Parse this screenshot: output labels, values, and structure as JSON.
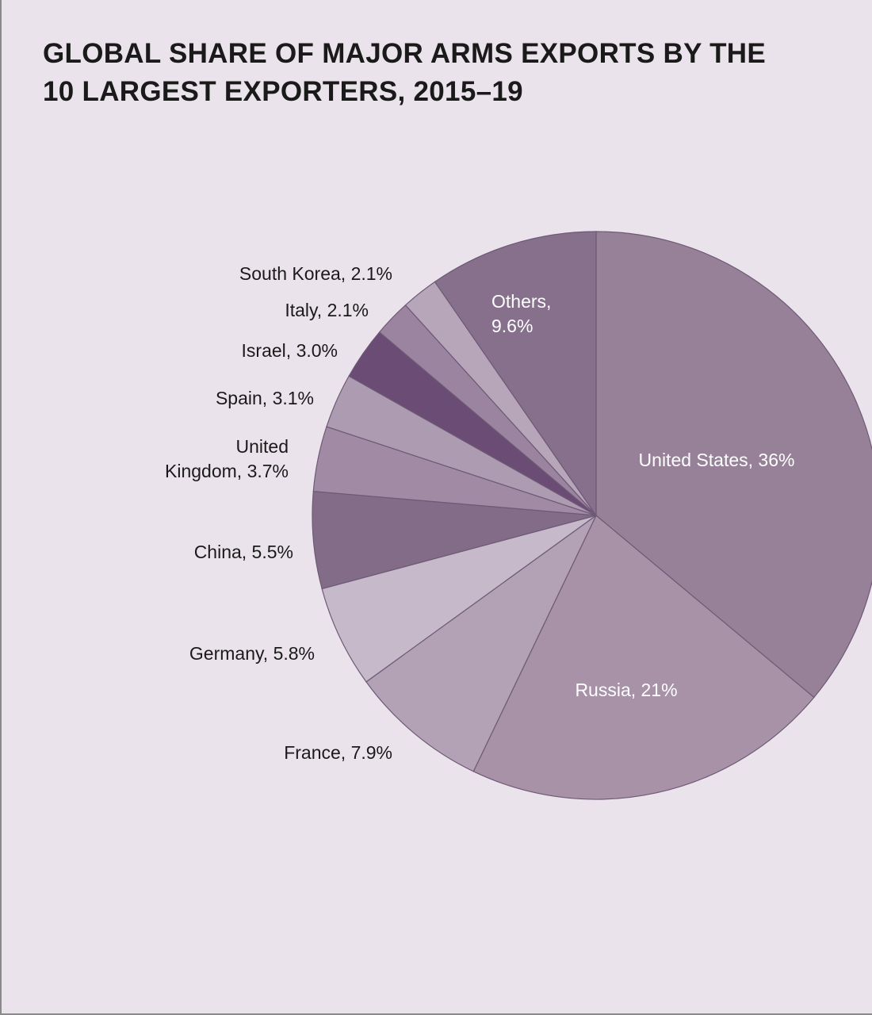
{
  "title": {
    "line1": "GLOBAL SHARE OF MAJOR ARMS EXPORTS BY THE",
    "line2": "10 LARGEST EXPORTERS, 2015–19"
  },
  "chart_data": {
    "type": "pie",
    "title": "GLOBAL SHARE OF MAJOR ARMS EXPORTS BY THE 10 LARGEST EXPORTERS, 2015–19",
    "slices": [
      {
        "name": "United States",
        "value": 36,
        "label": [
          "United States, 36%"
        ],
        "color": "#978198",
        "label_color": "#ffffff",
        "label_pos": "inside"
      },
      {
        "name": "Russia",
        "value": 21,
        "label": [
          "Russia, 21%"
        ],
        "color": "#a792a8",
        "label_color": "#ffffff",
        "label_pos": "inside"
      },
      {
        "name": "France",
        "value": 7.9,
        "label": [
          "France, 7.9%"
        ],
        "color": "#b3a2b6",
        "label_color": "#1a1a1a",
        "label_pos": "outside"
      },
      {
        "name": "Germany",
        "value": 5.8,
        "label": [
          "Germany, 5.8%"
        ],
        "color": "#c6b9c9",
        "label_color": "#1a1a1a",
        "label_pos": "outside"
      },
      {
        "name": "China",
        "value": 5.5,
        "label": [
          "China, 5.5%"
        ],
        "color": "#836c87",
        "label_color": "#1a1a1a",
        "label_pos": "outside"
      },
      {
        "name": "United Kingdom",
        "value": 3.7,
        "label": [
          "United",
          "Kingdom, 3.7%"
        ],
        "color": "#a18ba4",
        "label_color": "#1a1a1a",
        "label_pos": "outside"
      },
      {
        "name": "Spain",
        "value": 3.1,
        "label": [
          "Spain, 3.1%"
        ],
        "color": "#ad9bb1",
        "label_color": "#1a1a1a",
        "label_pos": "outside"
      },
      {
        "name": "Israel",
        "value": 3.0,
        "label": [
          "Israel, 3.0%"
        ],
        "color": "#6b4c74",
        "label_color": "#1a1a1a",
        "label_pos": "outside"
      },
      {
        "name": "Italy",
        "value": 2.1,
        "label": [
          "Italy, 2.1%"
        ],
        "color": "#9a84a0",
        "label_color": "#1a1a1a",
        "label_pos": "outside"
      },
      {
        "name": "South Korea",
        "value": 2.1,
        "label": [
          "South Korea, 2.1%"
        ],
        "color": "#b7a6ba",
        "label_color": "#1a1a1a",
        "label_pos": "outside"
      },
      {
        "name": "Others",
        "value": 9.6,
        "label": [
          "Others,",
          "9.6%"
        ],
        "color": "#86708c",
        "label_color": "#ffffff",
        "label_pos": "inside"
      }
    ],
    "legend": "none",
    "start": "12 o'clock",
    "direction": "clockwise"
  }
}
